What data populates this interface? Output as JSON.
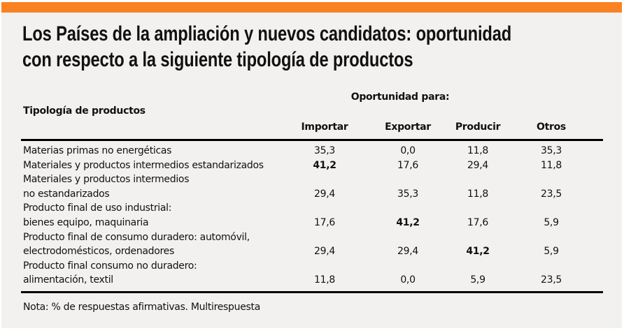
{
  "colors": {
    "accent_bar": "#f98323",
    "panel_background": "#f2f1ef",
    "text": "#111111"
  },
  "title_lines": [
    "Los Países de la ampliación y nuevos candidatos: oportunidad",
    "con respecto a la siguiente tipología de productos"
  ],
  "table": {
    "group_header": "Oportunidad para:",
    "row_header": "Tipología de productos",
    "columns": [
      "Importar",
      "Exportar",
      "Producir",
      "Otros"
    ],
    "rows": [
      {
        "label_lines": [
          "Materias primas no energéticas"
        ],
        "values": [
          "35,3",
          "0,0",
          "11,8",
          "35,3"
        ],
        "bold_index": -1
      },
      {
        "label_lines": [
          "Materiales y productos intermedios estandarizados"
        ],
        "values": [
          "41,2",
          "17,6",
          "29,4",
          "11,8"
        ],
        "bold_index": 0
      },
      {
        "label_lines": [
          "Materiales y productos intermedios",
          "no estandarizados"
        ],
        "values": [
          "29,4",
          "35,3",
          "11,8",
          "23,5"
        ],
        "bold_index": -1
      },
      {
        "label_lines": [
          "Producto final de uso industrial:",
          "bienes equipo, maquinaria"
        ],
        "values": [
          "17,6",
          "41,2",
          "17,6",
          "5,9"
        ],
        "bold_index": 1
      },
      {
        "label_lines": [
          "Producto final de consumo duradero: automóvil,",
          "electrodomésticos, ordenadores"
        ],
        "values": [
          "29,4",
          "29,4",
          "41,2",
          "5,9"
        ],
        "bold_index": 2
      },
      {
        "label_lines": [
          "Producto final consumo no duradero:",
          "alimentación, textil"
        ],
        "values": [
          "11,8",
          "0,0",
          "5,9",
          "23,5"
        ],
        "bold_index": -1
      }
    ]
  },
  "note": "Nota: % de respuestas afirmativas. Multirespuesta"
}
